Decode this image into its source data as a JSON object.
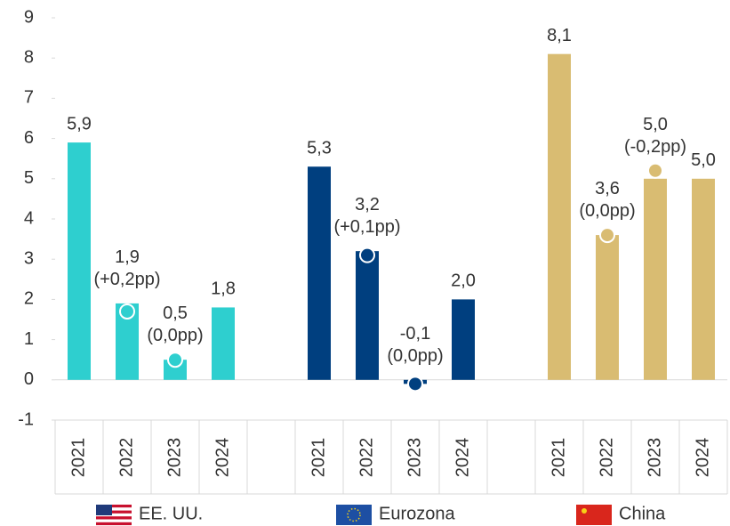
{
  "chart_data": {
    "type": "bar",
    "ylim": [
      -1,
      9
    ],
    "yticks": [
      -1,
      0,
      1,
      2,
      3,
      4,
      5,
      6,
      7,
      8,
      9
    ],
    "groups": [
      {
        "name": "EE. UU.",
        "color": "#2ecfcf",
        "categories": [
          "2021",
          "2022",
          "2023",
          "2024"
        ],
        "values": [
          5.9,
          1.9,
          0.5,
          1.8
        ],
        "value_labels": [
          "5,9",
          "1,9\n(+0,2pp)",
          "0,5\n(0,0pp)",
          "1,8"
        ],
        "marker_values": [
          null,
          1.7,
          0.5,
          null
        ]
      },
      {
        "name": "Eurozona",
        "color": "#003f7f",
        "categories": [
          "2021",
          "2022",
          "2023",
          "2024"
        ],
        "values": [
          5.3,
          3.2,
          -0.1,
          2.0
        ],
        "value_labels": [
          "5,3",
          "3,2\n(+0,1pp)",
          "-0,1\n(0,0pp)",
          "2,0"
        ],
        "marker_values": [
          null,
          3.1,
          -0.1,
          null
        ]
      },
      {
        "name": "China",
        "color": "#d9bc72",
        "categories": [
          "2021",
          "2022",
          "2023",
          "2024"
        ],
        "values": [
          8.1,
          3.6,
          5.0,
          5.0
        ],
        "value_labels": [
          "8,1",
          "3,6\n(0,0pp)",
          "5,0\n(-0,2pp)",
          "5,0"
        ],
        "marker_values": [
          null,
          3.6,
          5.2,
          null
        ]
      }
    ]
  }
}
